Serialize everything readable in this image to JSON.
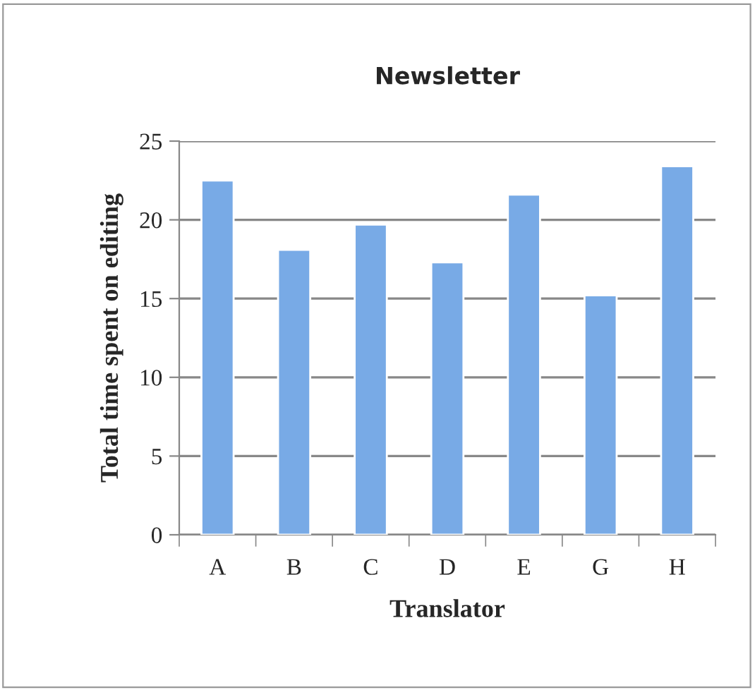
{
  "chart_data": {
    "type": "bar",
    "title": "Newsletter",
    "xlabel": "Translator",
    "ylabel": "Total time spent on editing",
    "categories": [
      "A",
      "B",
      "C",
      "D",
      "E",
      "G",
      "H"
    ],
    "values": [
      22.5,
      18.1,
      19.7,
      17.3,
      21.6,
      15.2,
      23.4
    ],
    "color": "#78aae6",
    "ylim": [
      0,
      25
    ],
    "yticks": [
      0,
      5,
      10,
      15,
      20,
      25
    ],
    "grid": "y",
    "legend": false
  }
}
